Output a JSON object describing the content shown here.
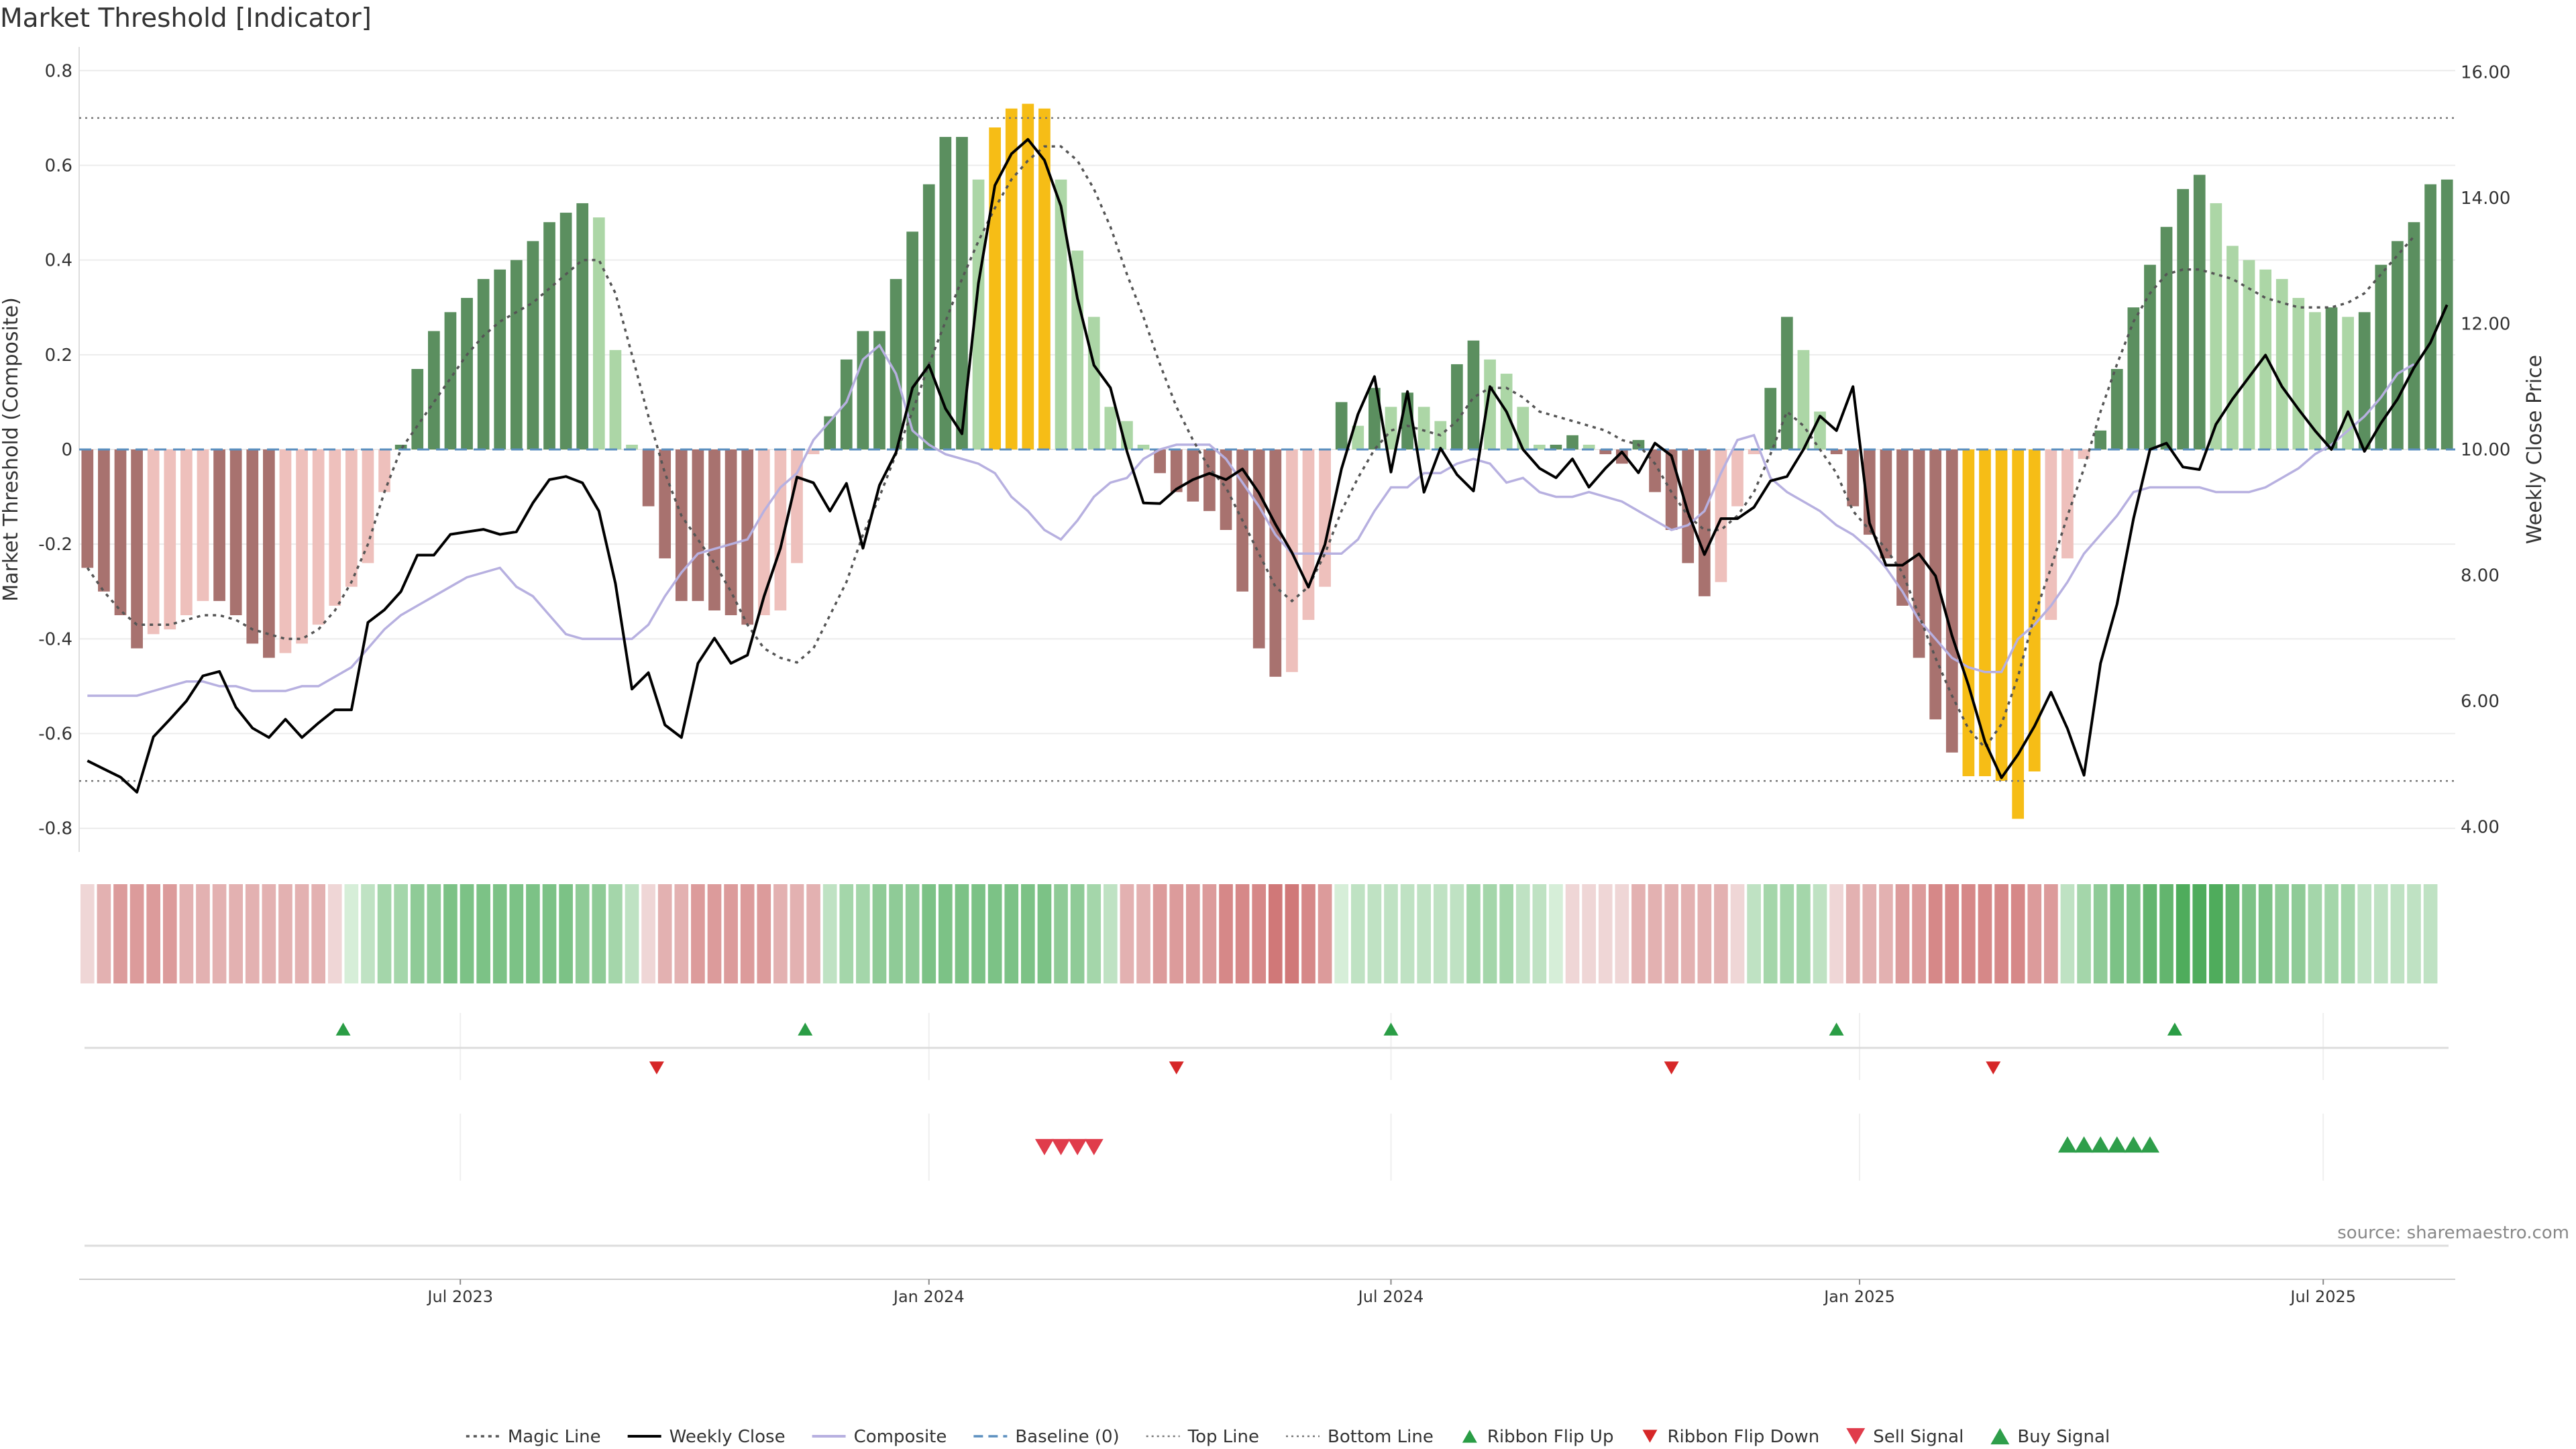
{
  "title": "Market Threshold [Indicator]",
  "source": "source: sharemaestro.com",
  "chart_data": {
    "type": "bar",
    "ylabel_left": "Market Threshold (Composite)",
    "ylabel_right": "Weekly Close Price",
    "ylim_left": [
      -0.85,
      0.85
    ],
    "ylim_right": [
      3.6,
      16.4
    ],
    "left_ticks": [
      "0.8",
      "0.6",
      "0.4",
      "0.2",
      "0",
      "-0.2",
      "-0.4",
      "-0.6",
      "-0.8"
    ],
    "right_ticks": [
      "16.00",
      "14.00",
      "12.00",
      "10.00",
      "8.00",
      "6.00",
      "4.00"
    ],
    "x_tick_labels": [
      "Jul 2023",
      "Jan 2024",
      "Jul 2024",
      "Jan 2025",
      "Jul 2025"
    ],
    "x_tick_index": [
      22.6,
      51.0,
      79.0,
      107.4,
      135.5
    ],
    "top_line": 0.7,
    "bottom_line": -0.7,
    "baseline": 0,
    "composite_bars": [
      -0.25,
      -0.3,
      -0.35,
      -0.42,
      -0.39,
      -0.38,
      -0.35,
      -0.32,
      -0.32,
      -0.35,
      -0.41,
      -0.44,
      -0.43,
      -0.41,
      -0.37,
      -0.33,
      -0.29,
      -0.24,
      -0.09,
      0.01,
      0.17,
      0.25,
      0.29,
      0.32,
      0.36,
      0.38,
      0.4,
      0.44,
      0.48,
      0.5,
      0.52,
      0.49,
      0.21,
      0.01,
      -0.12,
      -0.23,
      -0.32,
      -0.32,
      -0.34,
      -0.35,
      -0.37,
      -0.35,
      -0.34,
      -0.24,
      -0.01,
      0.07,
      0.19,
      0.25,
      0.25,
      0.36,
      0.46,
      0.56,
      0.66,
      0.66,
      0.57,
      0.68,
      0.72,
      0.73,
      0.72,
      0.57,
      0.42,
      0.28,
      0.09,
      0.06,
      0.01,
      -0.05,
      -0.09,
      -0.11,
      -0.13,
      -0.17,
      -0.3,
      -0.42,
      -0.48,
      -0.47,
      -0.36,
      -0.29,
      0.1,
      0.05,
      0.13,
      0.09,
      0.12,
      0.09,
      0.06,
      0.18,
      0.23,
      0.19,
      0.16,
      0.09,
      0.01,
      0.01,
      0.03,
      0.01,
      -0.01,
      -0.03,
      0.02,
      -0.09,
      -0.17,
      -0.24,
      -0.31,
      -0.28,
      -0.12,
      -0.01,
      0.13,
      0.28,
      0.21,
      0.08,
      -0.01,
      -0.12,
      -0.18,
      -0.23,
      -0.33,
      -0.44,
      -0.57,
      -0.64,
      -0.69,
      -0.69,
      -0.7,
      -0.78,
      -0.68,
      -0.36,
      -0.23,
      -0.02,
      0.04,
      0.17,
      0.3,
      0.39,
      0.47,
      0.55,
      0.58,
      0.52,
      0.43,
      0.4,
      0.38,
      0.36,
      0.32,
      0.29,
      0.3,
      0.28,
      0.29,
      0.39,
      0.44,
      0.48,
      0.56,
      0.57
    ],
    "magic_line": [
      -0.25,
      -0.3,
      -0.34,
      -0.37,
      -0.37,
      -0.37,
      -0.36,
      -0.35,
      -0.35,
      -0.36,
      -0.38,
      -0.39,
      -0.4,
      -0.4,
      -0.38,
      -0.34,
      -0.28,
      -0.2,
      -0.09,
      0.0,
      0.05,
      0.1,
      0.15,
      0.2,
      0.24,
      0.27,
      0.29,
      0.31,
      0.34,
      0.37,
      0.4,
      0.4,
      0.33,
      0.2,
      0.07,
      -0.05,
      -0.14,
      -0.19,
      -0.24,
      -0.3,
      -0.37,
      -0.42,
      -0.44,
      -0.45,
      -0.42,
      -0.35,
      -0.28,
      -0.18,
      -0.1,
      -0.01,
      0.08,
      0.18,
      0.27,
      0.36,
      0.44,
      0.51,
      0.57,
      0.61,
      0.64,
      0.64,
      0.61,
      0.55,
      0.47,
      0.37,
      0.28,
      0.18,
      0.09,
      0.02,
      -0.04,
      -0.08,
      -0.15,
      -0.22,
      -0.29,
      -0.32,
      -0.29,
      -0.22,
      -0.13,
      -0.06,
      0.0,
      0.04,
      0.05,
      0.04,
      0.03,
      0.06,
      0.11,
      0.13,
      0.13,
      0.11,
      0.08,
      0.07,
      0.06,
      0.05,
      0.04,
      0.02,
      0.01,
      -0.03,
      -0.09,
      -0.14,
      -0.17,
      -0.17,
      -0.14,
      -0.09,
      -0.01,
      0.08,
      0.05,
      0.0,
      -0.05,
      -0.13,
      -0.17,
      -0.21,
      -0.26,
      -0.35,
      -0.44,
      -0.52,
      -0.59,
      -0.63,
      -0.58,
      -0.48,
      -0.35,
      -0.25,
      -0.14,
      -0.04,
      0.08,
      0.18,
      0.27,
      0.33,
      0.37,
      0.38,
      0.38,
      0.37,
      0.36,
      0.34,
      0.32,
      0.31,
      0.3,
      0.3,
      0.3,
      0.31,
      0.33,
      0.37,
      0.41,
      0.45
    ],
    "composite_line": [
      -0.52,
      -0.52,
      -0.52,
      -0.52,
      -0.51,
      -0.5,
      -0.49,
      -0.49,
      -0.5,
      -0.5,
      -0.51,
      -0.51,
      -0.51,
      -0.5,
      -0.5,
      -0.48,
      -0.46,
      -0.42,
      -0.38,
      -0.35,
      -0.33,
      -0.31,
      -0.29,
      -0.27,
      -0.26,
      -0.25,
      -0.29,
      -0.31,
      -0.35,
      -0.39,
      -0.4,
      -0.4,
      -0.4,
      -0.4,
      -0.37,
      -0.31,
      -0.26,
      -0.22,
      -0.21,
      -0.2,
      -0.19,
      -0.13,
      -0.08,
      -0.05,
      0.02,
      0.06,
      0.1,
      0.19,
      0.22,
      0.16,
      0.04,
      0.01,
      -0.01,
      -0.02,
      -0.03,
      -0.05,
      -0.1,
      -0.13,
      -0.17,
      -0.19,
      -0.15,
      -0.1,
      -0.07,
      -0.06,
      -0.02,
      0.0,
      0.01,
      0.01,
      0.01,
      -0.02,
      -0.07,
      -0.12,
      -0.18,
      -0.22,
      -0.22,
      -0.22,
      -0.22,
      -0.19,
      -0.13,
      -0.08,
      -0.08,
      -0.05,
      -0.05,
      -0.03,
      -0.02,
      -0.03,
      -0.07,
      -0.06,
      -0.09,
      -0.1,
      -0.1,
      -0.09,
      -0.1,
      -0.11,
      -0.13,
      -0.15,
      -0.17,
      -0.16,
      -0.13,
      -0.05,
      0.02,
      0.03,
      -0.06,
      -0.09,
      -0.11,
      -0.13,
      -0.16,
      -0.18,
      -0.21,
      -0.25,
      -0.3,
      -0.36,
      -0.4,
      -0.44,
      -0.46,
      -0.47,
      -0.47,
      -0.4,
      -0.37,
      -0.33,
      -0.28,
      -0.22,
      -0.18,
      -0.14,
      -0.09,
      -0.08,
      -0.08,
      -0.08,
      -0.08,
      -0.09,
      -0.09,
      -0.09,
      -0.08,
      -0.06,
      -0.04,
      -0.01,
      0.01,
      0.04,
      0.07,
      0.11,
      0.16,
      0.18
    ],
    "weekly_close": [
      5.05,
      4.92,
      4.79,
      4.55,
      5.43,
      5.71,
      6.0,
      6.4,
      6.47,
      5.9,
      5.57,
      5.42,
      5.71,
      5.42,
      5.65,
      5.86,
      5.86,
      7.25,
      7.45,
      7.74,
      8.32,
      8.32,
      8.65,
      8.69,
      8.73,
      8.65,
      8.69,
      9.15,
      9.52,
      9.57,
      9.47,
      9.02,
      7.87,
      6.19,
      6.45,
      5.62,
      5.42,
      6.6,
      7.0,
      6.6,
      6.73,
      7.66,
      8.43,
      9.56,
      9.47,
      9.02,
      9.46,
      8.43,
      9.43,
      9.95,
      10.98,
      11.34,
      10.65,
      10.25,
      12.64,
      14.2,
      14.7,
      14.93,
      14.6,
      13.87,
      12.4,
      11.34,
      10.98,
      9.97,
      9.15,
      9.14,
      9.37,
      9.52,
      9.62,
      9.52,
      9.69,
      9.31,
      8.81,
      8.36,
      7.81,
      8.49,
      9.69,
      10.56,
      11.16,
      9.64,
      10.92,
      9.32,
      10.02,
      9.6,
      9.34,
      11.0,
      10.6,
      10.0,
      9.7,
      9.55,
      9.85,
      9.4,
      9.7,
      9.96,
      9.63,
      10.1,
      9.9,
      9.0,
      8.33,
      8.9,
      8.9,
      9.08,
      9.5,
      9.57,
      10.0,
      10.53,
      10.3,
      11.0,
      8.83,
      8.16,
      8.16,
      8.34,
      7.99,
      7.04,
      6.25,
      5.35,
      4.78,
      5.15,
      5.6,
      6.14,
      5.56,
      4.82,
      6.6,
      7.54,
      8.9,
      10.0,
      10.1,
      9.72,
      9.68,
      10.4,
      10.8,
      11.15,
      11.5,
      11.0,
      10.64,
      10.3,
      10.0,
      10.6,
      9.97,
      10.42,
      10.8,
      11.3,
      11.7,
      12.3
    ],
    "ribbon_colors": [
      "#efd6d6",
      "#e3b1b1",
      "#dc9b9b",
      "#dc9b9b",
      "#dc9b9b",
      "#dc9b9b",
      "#e3b1b1",
      "#e3b1b1",
      "#e3b1b1",
      "#e3b1b1",
      "#e3b1b1",
      "#e3b1b1",
      "#e3b1b1",
      "#e3b1b1",
      "#e3b1b1",
      "#efd6d6",
      "#d6eed8",
      "#bfe2c3",
      "#a4d6aa",
      "#a4d6aa",
      "#8fcb97",
      "#8fcb97",
      "#7cc286",
      "#7cc286",
      "#7cc286",
      "#7cc286",
      "#7cc286",
      "#7cc286",
      "#7cc286",
      "#7cc286",
      "#8fcb97",
      "#8fcb97",
      "#a4d6aa",
      "#bfe2c3",
      "#efd6d6",
      "#e3b1b1",
      "#e3b1b1",
      "#dc9b9b",
      "#dc9b9b",
      "#dc9b9b",
      "#dc9b9b",
      "#dc9b9b",
      "#e3b1b1",
      "#e3b1b1",
      "#e3b1b1",
      "#bfe2c3",
      "#a4d6aa",
      "#a4d6aa",
      "#8fcb97",
      "#8fcb97",
      "#8fcb97",
      "#7cc286",
      "#7cc286",
      "#7cc286",
      "#7cc286",
      "#7cc286",
      "#7cc286",
      "#7cc286",
      "#7cc286",
      "#8fcb97",
      "#8fcb97",
      "#a4d6aa",
      "#bfe2c3",
      "#e3b1b1",
      "#e3b1b1",
      "#dc9b9b",
      "#dc9b9b",
      "#dc9b9b",
      "#dc9b9b",
      "#d68888",
      "#d68888",
      "#d68888",
      "#d07878",
      "#d07878",
      "#d68888",
      "#dc9b9b",
      "#d6eed8",
      "#bfe2c3",
      "#bfe2c3",
      "#bfe2c3",
      "#bfe2c3",
      "#bfe2c3",
      "#bfe2c3",
      "#bfe2c3",
      "#a4d6aa",
      "#a4d6aa",
      "#a4d6aa",
      "#bfe2c3",
      "#bfe2c3",
      "#d6eed8",
      "#efd6d6",
      "#efd6d6",
      "#efd6d6",
      "#efd6d6",
      "#e3b1b1",
      "#e3b1b1",
      "#e3b1b1",
      "#e3b1b1",
      "#e3b1b1",
      "#e3b1b1",
      "#efd6d6",
      "#bfe2c3",
      "#a4d6aa",
      "#a4d6aa",
      "#a4d6aa",
      "#bfe2c3",
      "#efd6d6",
      "#e3b1b1",
      "#e3b1b1",
      "#e3b1b1",
      "#dc9b9b",
      "#dc9b9b",
      "#d68888",
      "#d68888",
      "#d68888",
      "#d68888",
      "#d68888",
      "#d68888",
      "#dc9b9b",
      "#dc9b9b",
      "#bfe2c3",
      "#a4d6aa",
      "#8fcb97",
      "#7cc286",
      "#7cc286",
      "#63b56e",
      "#63b56e",
      "#4fac5c",
      "#4fac5c",
      "#4fac5c",
      "#63b56e",
      "#7cc286",
      "#7cc286",
      "#8fcb97",
      "#8fcb97",
      "#a4d6aa",
      "#a4d6aa",
      "#a4d6aa",
      "#bfe2c3",
      "#bfe2c3",
      "#bfe2c3",
      "#bfe2c3",
      "#bfe2c3"
    ],
    "ribbon_flip_up_index": [
      15.5,
      43.5,
      79.0,
      106.0,
      126.5
    ],
    "ribbon_flip_down_index": [
      34.5,
      66.0,
      96.0,
      115.5
    ],
    "sell_signal_index": [
      58,
      59,
      60,
      61
    ],
    "buy_signal_index": [
      120,
      121,
      122,
      123,
      124,
      125
    ],
    "bar_colors": {
      "strong_up": "#5b8f5f",
      "weak_up": "#acd6a6",
      "strong_down": "#a8726f",
      "weak_down": "#eec0bc",
      "extreme": "#f6bd16"
    },
    "line_colors": {
      "magic_line": "#555555",
      "weekly_close": "#000000",
      "composite": "#b7b0e0",
      "baseline": "#5b8fbf",
      "top_bottom": "#777777",
      "ribbon_flip_up": "#2a9d45",
      "ribbon_flip_down": "#d62728",
      "sell_signal": "#e03c4b",
      "buy_signal": "#2e9e4a"
    },
    "legend": [
      {
        "label": "Magic Line",
        "kind": "dotted"
      },
      {
        "label": "Weekly Close",
        "kind": "solid"
      },
      {
        "label": "Composite",
        "kind": "composite"
      },
      {
        "label": "Baseline (0)",
        "kind": "dashed"
      },
      {
        "label": "Top Line",
        "kind": "fine-dotted"
      },
      {
        "label": "Bottom Line",
        "kind": "fine-dotted"
      },
      {
        "label": "Ribbon Flip Up",
        "kind": "tri-up-green"
      },
      {
        "label": "Ribbon Flip Down",
        "kind": "tri-down-red"
      },
      {
        "label": "Sell Signal",
        "kind": "tri-down-sell"
      },
      {
        "label": "Buy Signal",
        "kind": "tri-up-buy"
      }
    ]
  }
}
